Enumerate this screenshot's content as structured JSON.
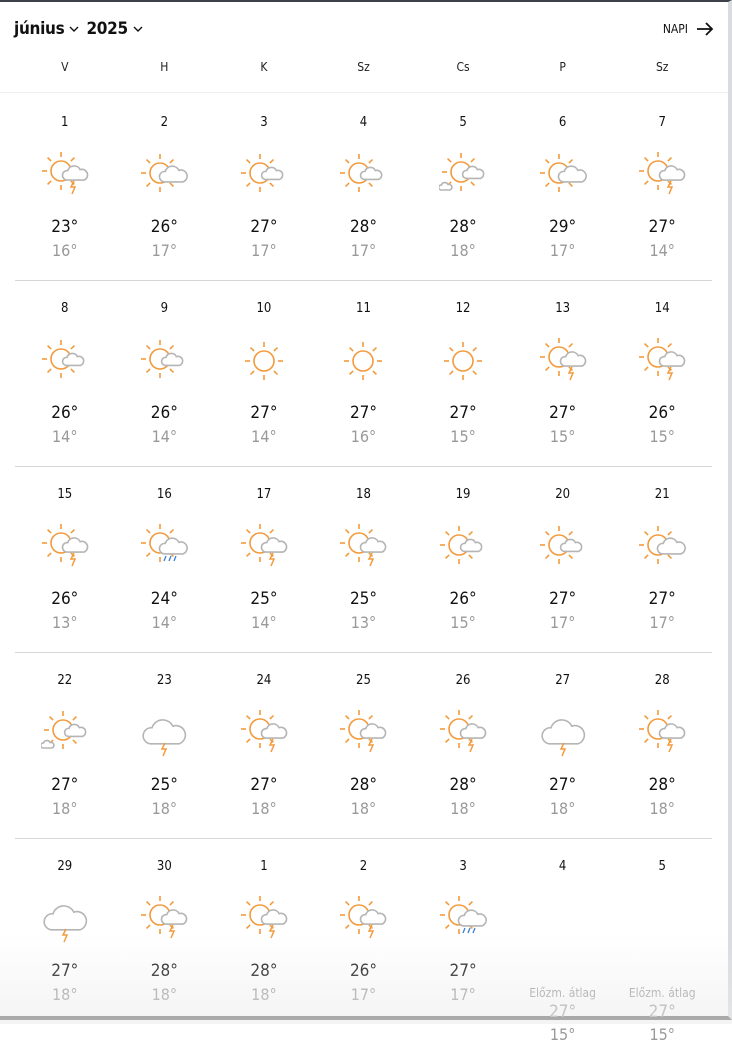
{
  "header": {
    "month": "június",
    "year": "2025",
    "view_link": "NAPI"
  },
  "weekdays": [
    "V",
    "H",
    "K",
    "Sz",
    "Cs",
    "P",
    "Sz"
  ],
  "colors": {
    "sun": "#f39a3c",
    "cloud": "#b5b5b5",
    "rain": "#3a7fd6",
    "high": "#111111",
    "low": "#999999"
  },
  "weeks": [
    [
      {
        "day": "1",
        "icon": "sun-cloud-storm",
        "high": "23°",
        "low": "16°"
      },
      {
        "day": "2",
        "icon": "sun-big-cloud",
        "high": "26°",
        "low": "17°"
      },
      {
        "day": "3",
        "icon": "sun-small-cloud",
        "high": "27°",
        "low": "17°"
      },
      {
        "day": "4",
        "icon": "sun-small-cloud",
        "high": "28°",
        "low": "17°"
      },
      {
        "day": "5",
        "icon": "sun-small-cloud-extra",
        "high": "28°",
        "low": "18°"
      },
      {
        "day": "6",
        "icon": "sun-big-cloud",
        "high": "29°",
        "low": "17°"
      },
      {
        "day": "7",
        "icon": "sun-cloud-storm",
        "high": "27°",
        "low": "14°"
      }
    ],
    [
      {
        "day": "8",
        "icon": "sun-small-cloud",
        "high": "26°",
        "low": "14°"
      },
      {
        "day": "9",
        "icon": "sun-small-cloud",
        "high": "26°",
        "low": "14°"
      },
      {
        "day": "10",
        "icon": "sun",
        "high": "27°",
        "low": "14°"
      },
      {
        "day": "11",
        "icon": "sun",
        "high": "27°",
        "low": "16°"
      },
      {
        "day": "12",
        "icon": "sun",
        "high": "27°",
        "low": "15°"
      },
      {
        "day": "13",
        "icon": "sun-cloud-storm",
        "high": "27°",
        "low": "15°"
      },
      {
        "day": "14",
        "icon": "sun-cloud-storm",
        "high": "26°",
        "low": "15°"
      }
    ],
    [
      {
        "day": "15",
        "icon": "sun-cloud-storm",
        "high": "26°",
        "low": "13°"
      },
      {
        "day": "16",
        "icon": "sun-cloud-rain",
        "high": "24°",
        "low": "14°"
      },
      {
        "day": "17",
        "icon": "sun-cloud-storm",
        "high": "25°",
        "low": "14°"
      },
      {
        "day": "18",
        "icon": "sun-cloud-storm",
        "high": "25°",
        "low": "13°"
      },
      {
        "day": "19",
        "icon": "sun-small-cloud",
        "high": "26°",
        "low": "15°"
      },
      {
        "day": "20",
        "icon": "sun-small-cloud",
        "high": "27°",
        "low": "17°"
      },
      {
        "day": "21",
        "icon": "sun-big-cloud",
        "high": "27°",
        "low": "17°"
      }
    ],
    [
      {
        "day": "22",
        "icon": "sun-small-cloud-extra",
        "high": "27°",
        "low": "18°"
      },
      {
        "day": "23",
        "icon": "cloud-storm",
        "high": "25°",
        "low": "18°"
      },
      {
        "day": "24",
        "icon": "sun-cloud-storm",
        "high": "27°",
        "low": "18°"
      },
      {
        "day": "25",
        "icon": "sun-cloud-storm",
        "high": "28°",
        "low": "18°"
      },
      {
        "day": "26",
        "icon": "sun-cloud-storm",
        "high": "28°",
        "low": "18°"
      },
      {
        "day": "27",
        "icon": "cloud-storm",
        "high": "27°",
        "low": "18°"
      },
      {
        "day": "28",
        "icon": "sun-cloud-storm",
        "high": "28°",
        "low": "18°"
      }
    ],
    [
      {
        "day": "29",
        "icon": "cloud-storm",
        "high": "27°",
        "low": "18°"
      },
      {
        "day": "30",
        "icon": "sun-cloud-storm",
        "high": "28°",
        "low": "18°"
      },
      {
        "day": "1",
        "icon": "sun-cloud-storm",
        "high": "28°",
        "low": "18°"
      },
      {
        "day": "2",
        "icon": "sun-cloud-storm",
        "high": "26°",
        "low": "17°"
      },
      {
        "day": "3",
        "icon": "sun-cloud-rain",
        "high": "27°",
        "low": "17°"
      },
      {
        "day": "4",
        "icon": "",
        "avg_label": "Előzm. átlag",
        "high": "27°",
        "low": "15°"
      },
      {
        "day": "5",
        "icon": "",
        "avg_label": "Előzm. átlag",
        "high": "27°",
        "low": "15°"
      }
    ]
  ]
}
